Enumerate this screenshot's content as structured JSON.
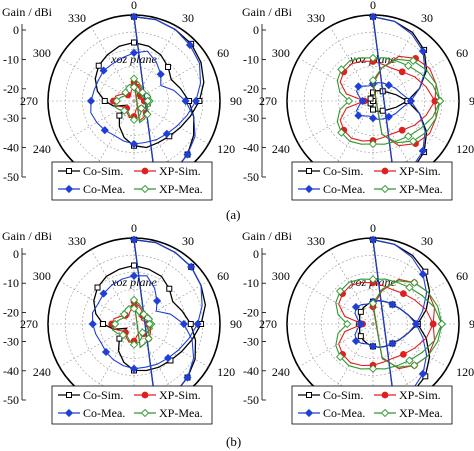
{
  "figure": {
    "captions": [
      "(a)",
      "(b)"
    ]
  },
  "colors": {
    "co_sim": "#000000",
    "xp_sim": "#e02020",
    "co_mea": "#1f3fd6",
    "xp_mea": "#2e9a2e"
  },
  "chart_data": [
    {
      "type": "line",
      "subtype": "polar",
      "title": "xoz plane",
      "ylabel": "Gain / dBi",
      "radial_ticks": [
        "0",
        "-10",
        "-20",
        "-30",
        "-40",
        "-50"
      ],
      "angle_ticks": [
        "0",
        "30",
        "60",
        "90",
        "120",
        "240",
        "270",
        "300",
        "330"
      ],
      "rlim": [
        -50,
        0
      ],
      "angle_step_deg": 15,
      "legend": [
        "Co-Sim.",
        "XP-Sim.",
        "Co-Mea.",
        "XP-Mea."
      ],
      "series": [
        {
          "name": "Co-Sim.",
          "values": [
            -1,
            -1,
            -2,
            -3,
            -5,
            -8,
            -12,
            -16,
            -19,
            -21,
            -22,
            -22,
            -24,
            -28,
            -33,
            -38,
            -45,
            -38,
            -33,
            -28,
            -24,
            -21,
            -19,
            -17,
            -16,
            -17,
            -19,
            -22,
            -25,
            -22,
            -18,
            -14,
            -10,
            -6,
            -3,
            -1.5
          ]
        },
        {
          "name": "XP-Sim.",
          "values": [
            -39,
            -41,
            -43,
            -45,
            -46,
            -45,
            -44,
            -43,
            -42,
            -44,
            -46,
            -45,
            -41,
            -40,
            -42,
            -44,
            -43,
            -39,
            -38,
            -39,
            -42,
            -45,
            -46,
            -44,
            -41,
            -40,
            -42,
            -45,
            -47,
            -46,
            -44,
            -42,
            -41,
            -40,
            -39,
            -38
          ]
        },
        {
          "name": "Co-Mea.",
          "values": [
            -1,
            -1,
            -2,
            -4,
            -6,
            -10,
            -14,
            -18,
            -21,
            -23,
            -24,
            -25,
            -25,
            -26,
            -27,
            -26,
            -25,
            -24,
            -25,
            -26,
            -26,
            -25,
            -25,
            -24,
            -22,
            -20,
            -24,
            -28,
            -32,
            -26,
            -20,
            -14,
            -9,
            -6,
            -3,
            -2
          ]
        },
        {
          "name": "XP-Mea.",
          "values": [
            -37,
            -39,
            -41,
            -43,
            -45,
            -43,
            -41,
            -40,
            -42,
            -44,
            -42,
            -40,
            -39,
            -41,
            -43,
            -42,
            -40,
            -38,
            -40,
            -42,
            -44,
            -43,
            -41,
            -40,
            -42,
            -44,
            -45,
            -43,
            -41,
            -40,
            -42,
            -43,
            -41,
            -39,
            -38,
            -37
          ]
        }
      ]
    },
    {
      "type": "line",
      "subtype": "polar",
      "title": "yoz plane",
      "ylabel": "Gain / dBi",
      "radial_ticks": [
        "0",
        "-10",
        "-20",
        "-30",
        "-40",
        "-50"
      ],
      "angle_ticks": [
        "0",
        "30",
        "60",
        "90",
        "120",
        "240",
        "270",
        "300",
        "330"
      ],
      "rlim": [
        -50,
        0
      ],
      "angle_step_deg": 15,
      "legend": [
        "Co-Sim.",
        "XP-Sim.",
        "Co-Mea.",
        "XP-Mea."
      ],
      "series": [
        {
          "name": "Co-Sim.",
          "values": [
            -1,
            -2,
            -4,
            -8,
            -14,
            -22,
            -30,
            -36,
            -40,
            -42,
            -43,
            -44,
            -45,
            -46,
            -47,
            -48,
            -49,
            -50,
            -50,
            -50,
            -49,
            -48,
            -47,
            -46,
            -45,
            -44,
            -43,
            -42,
            -40,
            -36,
            -30,
            -22,
            -14,
            -8,
            -4,
            -2
          ]
        },
        {
          "name": "XP-Sim.",
          "values": [
            -40,
            -30,
            -20,
            -15,
            -12,
            -12,
            -14,
            -18,
            -22,
            -26,
            -28,
            -28,
            -27,
            -26,
            -25,
            -26,
            -28,
            -34,
            -45,
            -34,
            -28,
            -26,
            -25,
            -26,
            -27,
            -28,
            -28,
            -26,
            -22,
            -18,
            -14,
            -12,
            -12,
            -15,
            -20,
            -30
          ]
        },
        {
          "name": "Co-Mea.",
          "values": [
            -1,
            -2,
            -5,
            -9,
            -15,
            -22,
            -28,
            -33,
            -35,
            -37,
            -38,
            -39,
            -40,
            -41,
            -40,
            -38,
            -39,
            -42,
            -44,
            -42,
            -39,
            -38,
            -40,
            -41,
            -40,
            -39,
            -38,
            -37,
            -35,
            -33,
            -28,
            -22,
            -15,
            -9,
            -5,
            -2
          ]
        },
        {
          "name": "XP-Mea.",
          "values": [
            -38,
            -30,
            -22,
            -17,
            -14,
            -12,
            -11,
            -14,
            -18,
            -21,
            -23,
            -24,
            -25,
            -24,
            -23,
            -24,
            -26,
            -30,
            -36,
            -30,
            -26,
            -24,
            -23,
            -24,
            -25,
            -24,
            -23,
            -21,
            -18,
            -14,
            -11,
            -12,
            -14,
            -17,
            -22,
            -30
          ]
        }
      ]
    },
    {
      "type": "line",
      "subtype": "polar",
      "title": "xoz plane",
      "ylabel": "Gain / dBi",
      "radial_ticks": [
        "0",
        "-10",
        "-20",
        "-30",
        "-40",
        "-50"
      ],
      "angle_ticks": [
        "0",
        "30",
        "60",
        "90",
        "120",
        "240",
        "270",
        "300",
        "330"
      ],
      "rlim": [
        -50,
        0
      ],
      "angle_step_deg": 15,
      "legend": [
        "Co-Sim.",
        "XP-Sim.",
        "Co-Mea.",
        "XP-Mea."
      ],
      "series": [
        {
          "name": "Co-Sim.",
          "values": [
            -1,
            -1,
            -2,
            -3,
            -5,
            -7,
            -11,
            -15,
            -18,
            -20,
            -21,
            -22,
            -23,
            -27,
            -32,
            -38,
            -45,
            -38,
            -32,
            -27,
            -23,
            -20,
            -18,
            -17,
            -16,
            -17,
            -18,
            -21,
            -24,
            -21,
            -17,
            -13,
            -9,
            -6,
            -3,
            -1.5
          ]
        },
        {
          "name": "XP-Sim.",
          "values": [
            -37,
            -39,
            -41,
            -43,
            -45,
            -44,
            -42,
            -41,
            -40,
            -42,
            -44,
            -43,
            -40,
            -39,
            -41,
            -43,
            -42,
            -38,
            -37,
            -38,
            -41,
            -43,
            -44,
            -42,
            -40,
            -39,
            -41,
            -43,
            -45,
            -44,
            -42,
            -40,
            -39,
            -38,
            -37,
            -36
          ]
        },
        {
          "name": "Co-Mea.",
          "values": [
            -1,
            -1,
            -2,
            -3,
            -5,
            -9,
            -13,
            -17,
            -20,
            -22,
            -23,
            -24,
            -24,
            -25,
            -26,
            -27,
            -28,
            -27,
            -26,
            -25,
            -26,
            -25,
            -24,
            -23,
            -22,
            -21,
            -26,
            -31,
            -35,
            -28,
            -21,
            -15,
            -10,
            -6,
            -3,
            -2
          ]
        },
        {
          "name": "XP-Mea.",
          "values": [
            -36,
            -38,
            -40,
            -42,
            -44,
            -42,
            -40,
            -39,
            -41,
            -43,
            -41,
            -39,
            -38,
            -40,
            -42,
            -41,
            -39,
            -37,
            -39,
            -41,
            -43,
            -42,
            -40,
            -39,
            -41,
            -43,
            -44,
            -42,
            -40,
            -39,
            -41,
            -42,
            -40,
            -38,
            -37,
            -36
          ]
        }
      ]
    },
    {
      "type": "line",
      "subtype": "polar",
      "title": "yoz plane",
      "ylabel": "Gain / dBi",
      "radial_ticks": [
        "0",
        "-10",
        "-20",
        "-30",
        "-40",
        "-50"
      ],
      "angle_ticks": [
        "0",
        "30",
        "60",
        "90",
        "120",
        "240",
        "270",
        "300",
        "330"
      ],
      "rlim": [
        -50,
        0
      ],
      "angle_step_deg": 15,
      "legend": [
        "Co-Sim.",
        "XP-Sim.",
        "Co-Mea.",
        "XP-Mea."
      ],
      "series": [
        {
          "name": "Co-Sim.",
          "values": [
            -1,
            -2,
            -4,
            -7,
            -12,
            -18,
            -24,
            -29,
            -32,
            -34,
            -35,
            -36,
            -37,
            -38,
            -39,
            -40,
            -41,
            -42,
            -42,
            -42,
            -41,
            -40,
            -39,
            -38,
            -37,
            -36,
            -35,
            -34,
            -32,
            -29,
            -24,
            -18,
            -12,
            -7,
            -4,
            -2
          ]
        },
        {
          "name": "XP-Sim.",
          "values": [
            -40,
            -30,
            -20,
            -16,
            -13,
            -13,
            -15,
            -18,
            -22,
            -25,
            -27,
            -27,
            -26,
            -25,
            -24,
            -25,
            -27,
            -33,
            -44,
            -33,
            -27,
            -25,
            -24,
            -25,
            -26,
            -27,
            -27,
            -25,
            -22,
            -18,
            -15,
            -13,
            -13,
            -16,
            -20,
            -30
          ]
        },
        {
          "name": "Co-Mea.",
          "values": [
            -1,
            -2,
            -5,
            -9,
            -14,
            -20,
            -25,
            -29,
            -32,
            -34,
            -35,
            -36,
            -37,
            -38,
            -37,
            -36,
            -38,
            -41,
            -43,
            -41,
            -38,
            -36,
            -37,
            -38,
            -37,
            -36,
            -35,
            -34,
            -32,
            -29,
            -25,
            -20,
            -14,
            -9,
            -5,
            -2
          ]
        },
        {
          "name": "XP-Mea.",
          "values": [
            -38,
            -29,
            -21,
            -16,
            -13,
            -11,
            -10,
            -13,
            -17,
            -20,
            -22,
            -23,
            -24,
            -23,
            -22,
            -23,
            -25,
            -29,
            -35,
            -29,
            -25,
            -23,
            -22,
            -23,
            -24,
            -23,
            -22,
            -20,
            -17,
            -13,
            -10,
            -11,
            -13,
            -16,
            -21,
            -29
          ]
        }
      ]
    }
  ]
}
